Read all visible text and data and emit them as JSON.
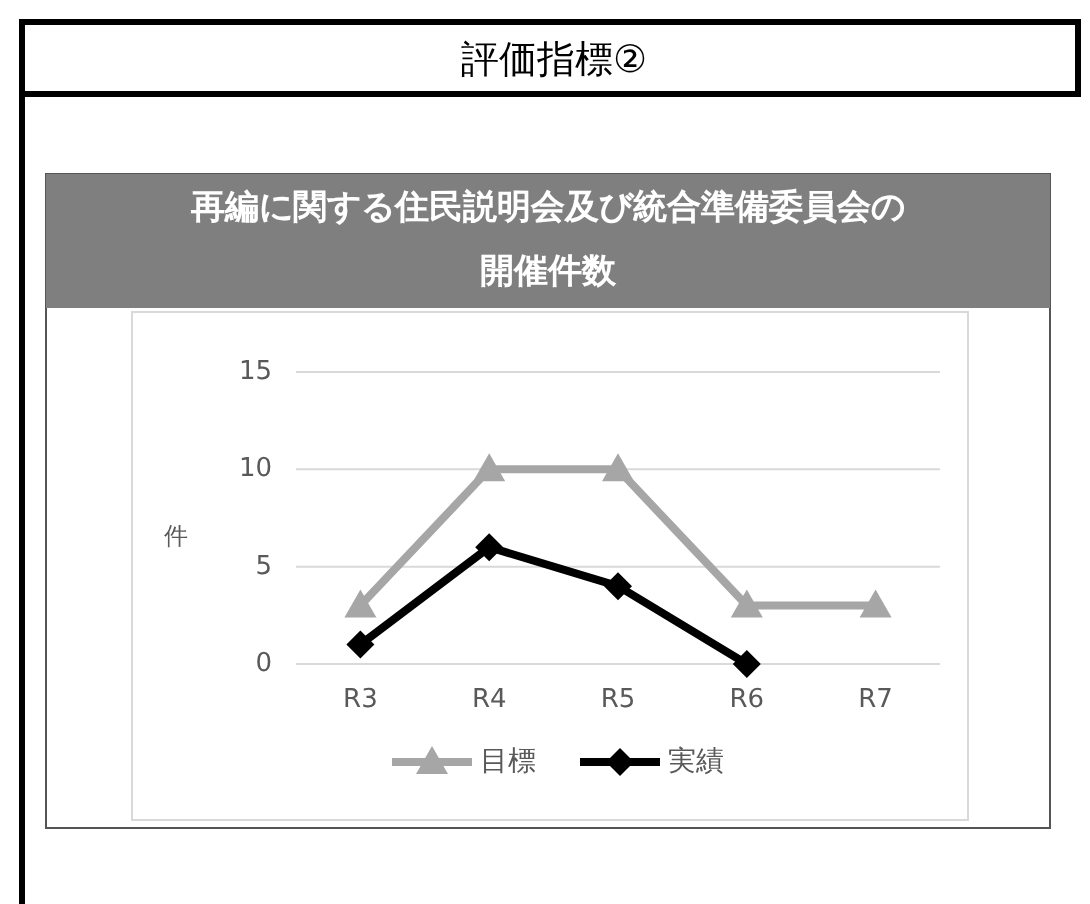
{
  "chart_data": {
    "type": "line",
    "title": "再編に関する住民説明会及び統合準備委員会の開催件数",
    "ylabel": "件",
    "annotations": [
      "評価指標②"
    ],
    "categories": [
      "R3",
      "R4",
      "R5",
      "R6",
      "R7"
    ],
    "series": [
      {
        "name": "目標",
        "color": "#a6a6a6",
        "marker": "triangle",
        "values": [
          3,
          10,
          10,
          3,
          3
        ]
      },
      {
        "name": "実績",
        "color": "#000000",
        "marker": "diamond",
        "values": [
          1,
          6,
          4,
          0,
          null
        ]
      }
    ],
    "ylim": [
      0,
      15
    ],
    "yticks": [
      0,
      5,
      10,
      15
    ],
    "grid": "y",
    "legend": "bottom",
    "line_style": "solid"
  }
}
